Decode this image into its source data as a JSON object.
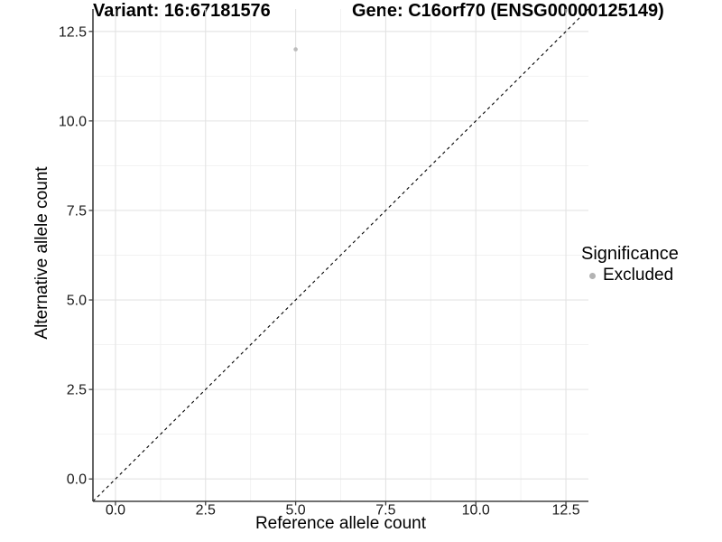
{
  "titles": {
    "variant": "Variant: 16:67181576",
    "gene": "Gene: C16orf70 (ENSG00000125149)"
  },
  "chart_data": {
    "type": "scatter",
    "title": "Variant: 16:67181576    Gene: C16orf70 (ENSG00000125149)",
    "xlabel": "Reference allele count",
    "ylabel": "Alternative allele count",
    "xlim": [
      -0.625,
      13.125
    ],
    "ylim": [
      -0.625,
      13.125
    ],
    "x_ticks": [
      0,
      2.5,
      5,
      7.5,
      10,
      12.5
    ],
    "x_tick_labels": [
      "0.0",
      "2.5",
      "5.0",
      "7.5",
      "10.0",
      "12.5"
    ],
    "y_ticks": [
      0,
      2.5,
      5,
      7.5,
      10,
      12.5
    ],
    "y_tick_labels": [
      "0.0",
      "2.5",
      "5.0",
      "7.5",
      "10.0",
      "12.5"
    ],
    "x_minor_ticks": [
      1.25,
      3.75,
      6.25,
      8.75,
      11.25
    ],
    "y_minor_ticks": [
      1.25,
      3.75,
      6.25,
      8.75,
      11.25
    ],
    "grid": true,
    "series": [
      {
        "name": "Excluded",
        "points": [
          {
            "x": 5,
            "y": 12
          }
        ]
      }
    ],
    "reference_line": {
      "slope": 1,
      "intercept": 0,
      "style": "dashed",
      "color": "#000000"
    },
    "legend": {
      "position": "right",
      "title": "Significance",
      "entries": [
        {
          "label": "Excluded",
          "color": "#B3B3B3"
        }
      ]
    },
    "colors": {
      "point": "#BCBCBC",
      "grid_major": "#E3E3E3",
      "grid_minor": "#F1F1F1",
      "axis_line": "#404040",
      "tick": "#404040",
      "text": "#1a1a1a"
    }
  }
}
